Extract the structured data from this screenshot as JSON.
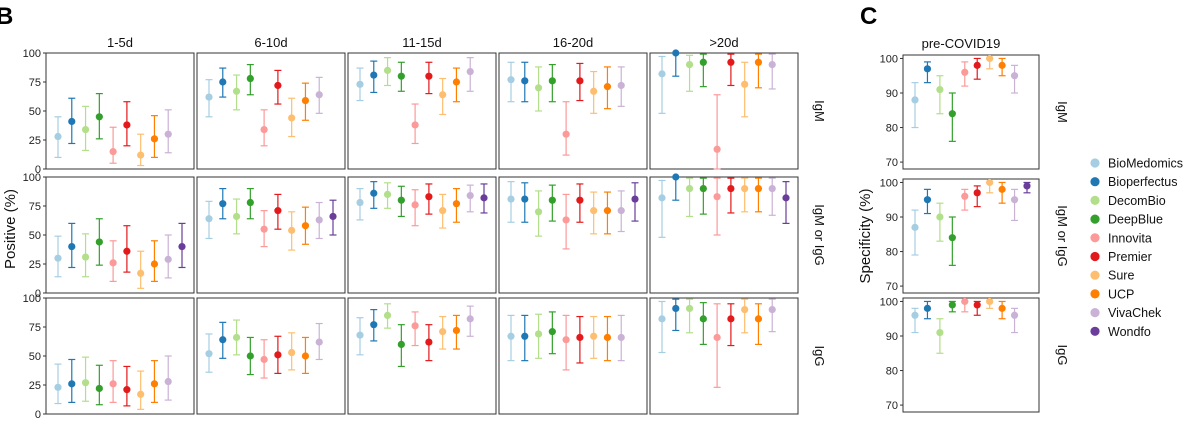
{
  "figure": {
    "panel_b_letter": "B",
    "panel_c_letter": "C"
  },
  "chart_data": [
    {
      "type": "scatter",
      "panel": "B",
      "ylabel": "Positive (%)",
      "ylim": [
        0,
        100
      ],
      "yticks": [
        0,
        25,
        50,
        75,
        100
      ],
      "columns": [
        "1-5d",
        "6-10d",
        "11-15d",
        "16-20d",
        ">20d"
      ],
      "rows": [
        "IgM",
        "IgM or IgG",
        "IgG"
      ],
      "brands": [
        "BioMedomics",
        "Bioperfectus",
        "DecomBio",
        "DeepBlue",
        "Innovita",
        "Premier",
        "Sure",
        "UCP",
        "VivaChek",
        "Wondfo"
      ],
      "cells": {
        "IgM": [
          [
            [
              28,
              10,
              45
            ],
            [
              41,
              22,
              61
            ],
            [
              34,
              16,
              54
            ],
            [
              45,
              26,
              65
            ],
            [
              15,
              5,
              36
            ],
            [
              38,
              20,
              58
            ],
            [
              12,
              3,
              30
            ],
            [
              26,
              10,
              46
            ],
            [
              30,
              14,
              51
            ],
            null
          ],
          [
            [
              62,
              45,
              77
            ],
            [
              75,
              62,
              87
            ],
            [
              67,
              51,
              81
            ],
            [
              78,
              64,
              90
            ],
            [
              34,
              20,
              51
            ],
            [
              72,
              56,
              85
            ],
            [
              44,
              28,
              61
            ],
            [
              59,
              42,
              74
            ],
            [
              64,
              48,
              79
            ],
            null
          ],
          [
            [
              73,
              59,
              87
            ],
            [
              81,
              66,
              93
            ],
            [
              85,
              72,
              96
            ],
            [
              80,
              67,
              92
            ],
            [
              38,
              22,
              56
            ],
            [
              80,
              65,
              92
            ],
            [
              64,
              47,
              78
            ],
            [
              75,
              58,
              87
            ],
            [
              84,
              67,
              96
            ],
            null
          ],
          [
            [
              77,
              58,
              92
            ],
            [
              76,
              58,
              92
            ],
            [
              70,
              50,
              88
            ],
            [
              76,
              58,
              90
            ],
            [
              30,
              12,
              58
            ],
            [
              76,
              59,
              91
            ],
            [
              67,
              48,
              84
            ],
            [
              71,
              52,
              88
            ],
            [
              72,
              54,
              88
            ],
            null
          ],
          [
            [
              82,
              48,
              97
            ],
            [
              100,
              80,
              100
            ],
            [
              90,
              67,
              98
            ],
            [
              92,
              71,
              99
            ],
            [
              17,
              0,
              64
            ],
            [
              92,
              72,
              99
            ],
            [
              73,
              45,
              92
            ],
            [
              92,
              70,
              99
            ],
            [
              90,
              69,
              99
            ],
            null
          ]
        ],
        "IgM or IgG": [
          [
            [
              30,
              14,
              49
            ],
            [
              40,
              22,
              60
            ],
            [
              31,
              14,
              51
            ],
            [
              44,
              24,
              64
            ],
            [
              26,
              10,
              45
            ],
            [
              36,
              18,
              58
            ],
            [
              17,
              4,
              36
            ],
            [
              25,
              10,
              45
            ],
            [
              29,
              13,
              50
            ],
            [
              40,
              22,
              60
            ]
          ],
          [
            [
              64,
              47,
              79
            ],
            [
              77,
              64,
              90
            ],
            [
              66,
              51,
              81
            ],
            [
              78,
              64,
              90
            ],
            [
              55,
              40,
              71
            ],
            [
              71,
              55,
              85
            ],
            [
              54,
              37,
              70
            ],
            [
              58,
              42,
              74
            ],
            [
              63,
              47,
              78
            ],
            [
              66,
              50,
              80
            ]
          ],
          [
            [
              78,
              63,
              90
            ],
            [
              86,
              73,
              96
            ],
            [
              85,
              73,
              95
            ],
            [
              80,
              66,
              92
            ],
            [
              76,
              58,
              89
            ],
            [
              83,
              68,
              94
            ],
            [
              71,
              56,
              85
            ],
            [
              77,
              61,
              90
            ],
            [
              84,
              70,
              93
            ],
            [
              82,
              69,
              94
            ]
          ],
          [
            [
              81,
              61,
              96
            ],
            [
              81,
              61,
              95
            ],
            [
              70,
              49,
              88
            ],
            [
              80,
              62,
              93
            ],
            [
              63,
              38,
              85
            ],
            [
              80,
              61,
              94
            ],
            [
              71,
              51,
              87
            ],
            [
              71,
              51,
              87
            ],
            [
              71,
              53,
              88
            ],
            [
              81,
              62,
              95
            ]
          ],
          [
            [
              82,
              48,
              97
            ],
            [
              100,
              80,
              100
            ],
            [
              90,
              66,
              99
            ],
            [
              90,
              68,
              99
            ],
            [
              83,
              50,
              99
            ],
            [
              90,
              69,
              99
            ],
            [
              90,
              70,
              99
            ],
            [
              90,
              70,
              99
            ],
            [
              90,
              67,
              99
            ],
            [
              82,
              60,
              96
            ]
          ]
        ],
        "IgG": [
          [
            [
              23,
              9,
              43
            ],
            [
              26,
              10,
              47
            ],
            [
              27,
              11,
              49
            ],
            [
              22,
              8,
              42
            ],
            [
              26,
              10,
              46
            ],
            [
              21,
              7,
              41
            ],
            [
              17,
              4,
              37
            ],
            [
              26,
              10,
              46
            ],
            [
              28,
              12,
              50
            ],
            null
          ],
          [
            [
              52,
              36,
              69
            ],
            [
              64,
              48,
              79
            ],
            [
              66,
              51,
              81
            ],
            [
              50,
              34,
              66
            ],
            [
              47,
              31,
              64
            ],
            [
              51,
              35,
              67
            ],
            [
              53,
              38,
              70
            ],
            [
              50,
              35,
              66
            ],
            [
              62,
              47,
              78
            ],
            null
          ],
          [
            [
              68,
              51,
              83
            ],
            [
              77,
              63,
              90
            ],
            [
              85,
              74,
              95
            ],
            [
              60,
              41,
              77
            ],
            [
              76,
              59,
              88
            ],
            [
              62,
              46,
              77
            ],
            [
              71,
              56,
              84
            ],
            [
              72,
              56,
              85
            ],
            [
              82,
              67,
              93
            ],
            null
          ],
          [
            [
              67,
              46,
              85
            ],
            [
              67,
              46,
              85
            ],
            [
              69,
              48,
              86
            ],
            [
              71,
              52,
              88
            ],
            [
              64,
              38,
              85
            ],
            [
              66,
              44,
              84
            ],
            [
              67,
              48,
              84
            ],
            [
              66,
              46,
              84
            ],
            [
              66,
              46,
              85
            ],
            null
          ],
          [
            [
              82,
              53,
              97
            ],
            [
              91,
              72,
              99
            ],
            [
              91,
              70,
              99
            ],
            [
              82,
              60,
              96
            ],
            [
              66,
              23,
              95
            ],
            [
              82,
              59,
              95
            ],
            [
              90,
              70,
              99
            ],
            [
              82,
              60,
              95
            ],
            [
              90,
              71,
              99
            ],
            null
          ]
        ]
      }
    },
    {
      "type": "scatter",
      "panel": "C",
      "title": "pre-COVID19",
      "ylabel": "Specificity (%)",
      "ylim": [
        68,
        101
      ],
      "yticks": [
        70,
        80,
        90,
        100
      ],
      "rows": [
        "IgM",
        "IgM or IgG",
        "IgG"
      ],
      "brands": [
        "BioMedomics",
        "Bioperfectus",
        "DecomBio",
        "DeepBlue",
        "Innovita",
        "Premier",
        "Sure",
        "UCP",
        "VivaChek",
        "Wondfo"
      ],
      "cells": {
        "IgM": [
          [
            88,
            80,
            93
          ],
          [
            97,
            93,
            99
          ],
          [
            91,
            84,
            95
          ],
          [
            84,
            76,
            90
          ],
          [
            96,
            92,
            99
          ],
          [
            98,
            94,
            100
          ],
          [
            100,
            97,
            100
          ],
          [
            98,
            95,
            100
          ],
          [
            95,
            90,
            98
          ],
          null
        ],
        "IgM or IgG": [
          [
            87,
            79,
            92
          ],
          [
            95,
            91,
            98
          ],
          [
            90,
            83,
            94
          ],
          [
            84,
            76,
            90
          ],
          [
            96,
            92,
            98
          ],
          [
            97,
            93,
            99
          ],
          [
            100,
            97,
            100
          ],
          [
            98,
            94,
            100
          ],
          [
            95,
            89,
            98
          ],
          [
            99,
            97,
            100
          ]
        ],
        "IgG": [
          [
            96,
            91,
            98
          ],
          [
            98,
            95,
            100
          ],
          [
            91,
            85,
            95
          ],
          [
            99,
            97,
            100
          ],
          [
            100,
            97,
            100
          ],
          [
            99,
            96,
            100
          ],
          [
            100,
            98,
            100
          ],
          [
            98,
            95,
            100
          ],
          [
            96,
            91,
            98
          ],
          null
        ]
      }
    }
  ],
  "legend": {
    "items": [
      {
        "label": "BioMedomics",
        "color": "#a6cee3"
      },
      {
        "label": "Bioperfectus",
        "color": "#1f78b4"
      },
      {
        "label": "DecomBio",
        "color": "#b2df8a"
      },
      {
        "label": "DeepBlue",
        "color": "#33a02c"
      },
      {
        "label": "Innovita",
        "color": "#fb9a99"
      },
      {
        "label": "Premier",
        "color": "#e31a1c"
      },
      {
        "label": "Sure",
        "color": "#fdbf6f"
      },
      {
        "label": "UCP",
        "color": "#ff7f00"
      },
      {
        "label": "VivaChek",
        "color": "#cab2d6"
      },
      {
        "label": "Wondfo",
        "color": "#6a3d9a"
      }
    ]
  }
}
